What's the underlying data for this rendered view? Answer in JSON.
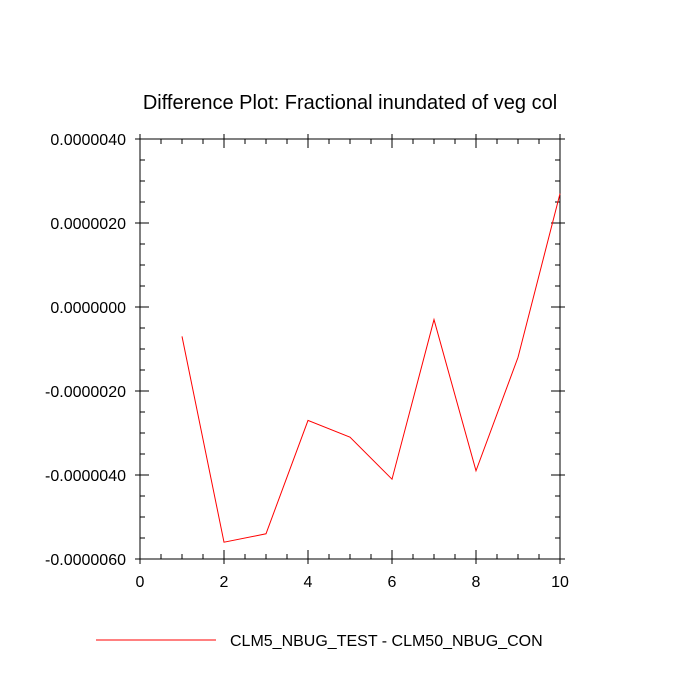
{
  "chart_data": {
    "type": "line",
    "title": "Difference Plot: Fractional inundated of veg col",
    "xlabel": "",
    "ylabel": "",
    "xlim": [
      0,
      10
    ],
    "ylim": [
      -6e-06,
      4e-06
    ],
    "x_ticks": [
      0,
      2,
      4,
      6,
      8,
      10
    ],
    "x_tick_labels": [
      "0",
      "2",
      "4",
      "6",
      "8",
      "10"
    ],
    "y_ticks": [
      4e-06,
      2e-06,
      0.0,
      -2e-06,
      -4e-06,
      -6e-06
    ],
    "y_tick_labels": [
      "0.0000040",
      "0.0000020",
      "0.0000000",
      "-0.0000020",
      "-0.0000040",
      "-0.0000060"
    ],
    "grid": false,
    "legend_position": "bottom",
    "series": [
      {
        "name": "CLM5_NBUG_TEST - CLM50_NBUG_CON",
        "color": "#ff0000",
        "x": [
          1,
          2,
          3,
          4,
          5,
          6,
          7,
          8,
          9,
          10
        ],
        "y": [
          -7e-07,
          -5.6e-06,
          -5.4e-06,
          -2.7e-06,
          -3.1e-06,
          -4.1e-06,
          -3e-07,
          -3.9e-06,
          -1.2e-06,
          2.7e-06
        ]
      }
    ]
  }
}
